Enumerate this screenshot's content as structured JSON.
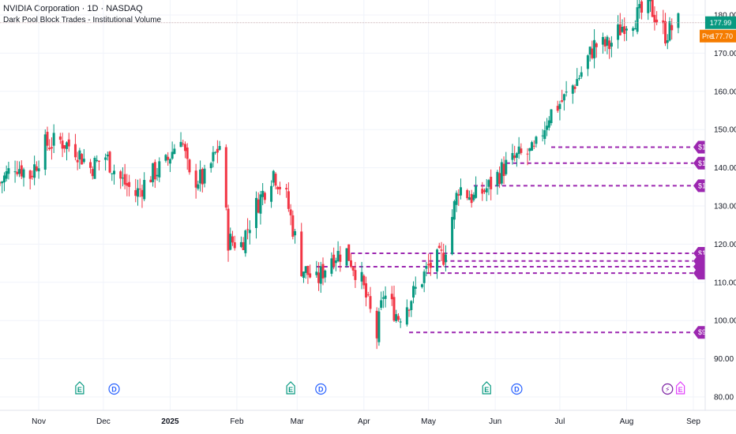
{
  "header": {
    "symbol_title": "NVIDIA Corporation · 1D · NASDAQ",
    "indicator_title": "Dark Pool Block Trades - Institutional Volume"
  },
  "price_tags": {
    "last": {
      "label": "177.99",
      "value": 177.99,
      "color": "#089981"
    },
    "pre": {
      "prefix": "Pre",
      "label": "177.70",
      "value": 177.7,
      "color": "#f57c00"
    }
  },
  "colors": {
    "up": "#089981",
    "down": "#f23645",
    "level": "#9c27b0"
  },
  "chart_data": {
    "type": "candlestick",
    "y_axis": {
      "ticks": [
        80,
        90,
        100,
        110,
        120,
        130,
        140,
        150,
        160,
        170,
        180
      ],
      "tick_labels": [
        "80.00",
        "90.00",
        "100.00",
        "110.00",
        "120.00",
        "130.00",
        "140.00",
        "150.00",
        "160.00",
        "170.00",
        "180.00"
      ],
      "range": [
        78,
        186
      ]
    },
    "x_axis": {
      "range": [
        "2024-10-14",
        "2025-09-01"
      ],
      "ticks": [
        {
          "date": "2024-11-01",
          "label": "Nov",
          "bold": false
        },
        {
          "date": "2024-12-01",
          "label": "Dec",
          "bold": false
        },
        {
          "date": "2025-01-01",
          "label": "2025",
          "bold": true
        },
        {
          "date": "2025-02-01",
          "label": "Feb",
          "bold": false
        },
        {
          "date": "2025-03-01",
          "label": "Mar",
          "bold": false
        },
        {
          "date": "2025-04-01",
          "label": "Apr",
          "bold": false
        },
        {
          "date": "2025-05-01",
          "label": "May",
          "bold": false
        },
        {
          "date": "2025-06-01",
          "label": "Jun",
          "bold": false
        },
        {
          "date": "2025-07-01",
          "label": "Jul",
          "bold": false
        },
        {
          "date": "2025-08-01",
          "label": "Aug",
          "bold": false
        },
        {
          "date": "2025-09-01",
          "label": "Sep",
          "bold": false
        }
      ]
    },
    "close_path": [
      [
        "2024-10-14",
        136
      ],
      [
        "2024-10-21",
        141
      ],
      [
        "2024-10-28",
        138
      ],
      [
        "2024-11-04",
        146
      ],
      [
        "2024-11-11",
        147
      ],
      [
        "2024-11-18",
        145
      ],
      [
        "2024-11-25",
        140
      ],
      [
        "2024-12-02",
        143
      ],
      [
        "2024-12-09",
        137
      ],
      [
        "2024-12-16",
        133
      ],
      [
        "2024-12-23",
        138
      ],
      [
        "2024-12-30",
        141
      ],
      [
        "2025-01-06",
        149
      ],
      [
        "2025-01-10",
        137
      ],
      [
        "2025-01-17",
        137
      ],
      [
        "2025-01-24",
        146
      ],
      [
        "2025-01-28",
        121
      ],
      [
        "2025-02-03",
        120
      ],
      [
        "2025-02-10",
        130
      ],
      [
        "2025-02-18",
        139
      ],
      [
        "2025-02-24",
        132
      ],
      [
        "2025-03-03",
        114
      ],
      [
        "2025-03-10",
        110
      ],
      [
        "2025-03-17",
        117
      ],
      [
        "2025-03-24",
        118
      ],
      [
        "2025-03-31",
        110
      ],
      [
        "2025-04-07",
        96
      ],
      [
        "2025-04-10",
        107
      ],
      [
        "2025-04-17",
        101
      ],
      [
        "2025-04-24",
        107
      ],
      [
        "2025-05-01",
        114
      ],
      [
        "2025-05-08",
        117
      ],
      [
        "2025-05-15",
        135
      ],
      [
        "2025-05-22",
        132
      ],
      [
        "2025-05-29",
        135
      ],
      [
        "2025-06-05",
        140
      ],
      [
        "2025-06-12",
        143
      ],
      [
        "2025-06-19",
        144
      ],
      [
        "2025-06-26",
        154
      ],
      [
        "2025-07-03",
        158
      ],
      [
        "2025-07-10",
        164
      ],
      [
        "2025-07-17",
        172
      ],
      [
        "2025-07-24",
        172
      ],
      [
        "2025-07-31",
        178
      ],
      [
        "2025-08-07",
        180
      ],
      [
        "2025-08-12",
        182
      ],
      [
        "2025-08-19",
        175
      ],
      [
        "2025-08-21",
        176
      ],
      [
        "2025-08-25",
        178
      ]
    ],
    "levels": [
      {
        "price": 145.4,
        "label": "$145.4",
        "start": "2025-06-27"
      },
      {
        "price": 141.2,
        "label": "$141.2",
        "start": "2025-06-06"
      },
      {
        "price": 135.3,
        "label": "$135.3",
        "start": "2025-05-22"
      },
      {
        "price": 117.6,
        "label": "$117.6",
        "start": "2025-03-26"
      },
      {
        "price": 115.6,
        "label": "",
        "start": "2025-04-28"
      },
      {
        "price": 114.1,
        "label": "",
        "start": "2025-03-10"
      },
      {
        "price": 112.4,
        "label": "",
        "start": "2025-04-30"
      },
      {
        "price": 96.9,
        "label": "$96.9",
        "start": "2025-04-22"
      }
    ],
    "event_markers": [
      {
        "date": "2024-11-20",
        "type": "E",
        "kind": "earnings"
      },
      {
        "date": "2024-12-06",
        "type": "D",
        "kind": "dividend"
      },
      {
        "date": "2025-02-26",
        "type": "E",
        "kind": "earnings"
      },
      {
        "date": "2025-03-12",
        "type": "D",
        "kind": "dividend"
      },
      {
        "date": "2025-05-28",
        "type": "E",
        "kind": "earnings"
      },
      {
        "date": "2025-06-11",
        "type": "D",
        "kind": "dividend"
      },
      {
        "date": "2025-08-20",
        "type": "⚡",
        "kind": "split"
      },
      {
        "date": "2025-08-26",
        "type": "E",
        "kind": "earnings"
      }
    ]
  }
}
